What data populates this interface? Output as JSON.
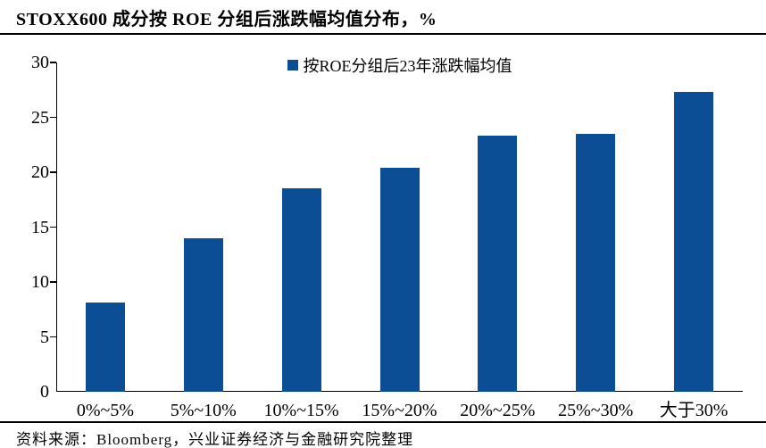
{
  "header": {
    "title": "STOXX600 成分按 ROE 分组后涨跌幅均值分布，%"
  },
  "legend": {
    "label": "按ROE分组后23年涨跌幅均值"
  },
  "footer": {
    "source": "资料来源：Bloomberg，兴业证券经济与金融研究院整理"
  },
  "colors": {
    "bar": "#0B4E95",
    "axis": "#000000",
    "text": "#000000",
    "background": "#ffffff"
  },
  "chart_data": {
    "type": "bar",
    "title": "STOXX600 成分按 ROE 分组后涨跌幅均值分布，%",
    "categories": [
      "0%~5%",
      "5%~10%",
      "10%~15%",
      "15%~20%",
      "20%~25%",
      "25%~30%",
      "大于30%"
    ],
    "values": [
      8.1,
      14,
      18.5,
      20.4,
      23.3,
      23.5,
      27.3
    ],
    "series_name": "按ROE分组后23年涨跌幅均值",
    "xlabel": "",
    "ylabel": "",
    "ylim": [
      0,
      30
    ],
    "yticks": [
      0,
      5,
      10,
      15,
      20,
      25,
      30
    ],
    "grid": false,
    "legend_position": "top-center",
    "source": "资料来源：Bloomberg，兴业证券经济与金融研究院整理"
  }
}
